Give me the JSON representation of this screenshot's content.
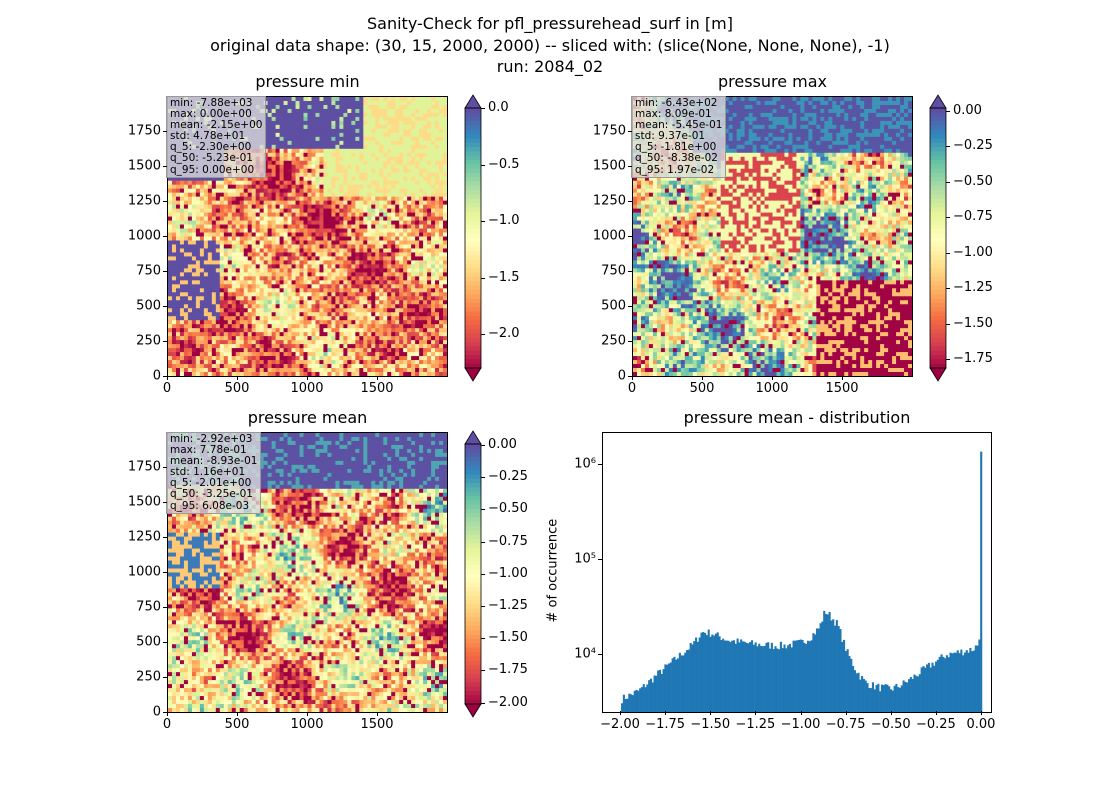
{
  "suptitle": {
    "line1": "Sanity-Check for pfl_pressurehead_surf in [m]",
    "line2": "original data shape: (30, 15, 2000, 2000) -- sliced with: (slice(None, None, None), -1)",
    "line3": "run: 2084_02"
  },
  "colors": {
    "spectral": [
      "#9e0142",
      "#d53e4f",
      "#f46d43",
      "#fdae61",
      "#fee08b",
      "#ffffbf",
      "#e6f598",
      "#abdda4",
      "#66c2a5",
      "#3288bd",
      "#5e4fa2"
    ],
    "hist_bar": "#1f77b4"
  },
  "chart_data": [
    {
      "type": "heatmap",
      "title": "pressure min",
      "x_ticks": [
        "0",
        "500",
        "1000",
        "1500"
      ],
      "y_ticks": [
        "0",
        "250",
        "500",
        "750",
        "1000",
        "1250",
        "1500",
        "1750"
      ],
      "x_range": [
        0,
        2000
      ],
      "y_range": [
        0,
        2000
      ],
      "colorbar": {
        "ticks": [
          "0.0",
          "−0.5",
          "−1.0",
          "−1.5",
          "−2.0"
        ],
        "tick_values": [
          0.0,
          -0.5,
          -1.0,
          -1.5,
          -2.0
        ],
        "range": [
          -2.3,
          0.0
        ],
        "extend": "both"
      },
      "stats": [
        "min: -7.88e+03",
        "max: 0.00e+00",
        "mean: -2.15e+00",
        "std: 4.78e+01",
        "q_5: -2.30e+00",
        "q_50: -5.23e-01",
        "q_95: 0.00e+00"
      ],
      "dominant_pattern": "top region high (purple), bottom mixed red/orange/yellow"
    },
    {
      "type": "heatmap",
      "title": "pressure max",
      "x_ticks": [
        "0",
        "500",
        "1000",
        "1500"
      ],
      "y_ticks": [
        "0",
        "250",
        "500",
        "750",
        "1000",
        "1250",
        "1500",
        "1750"
      ],
      "x_range": [
        0,
        2000
      ],
      "y_range": [
        0,
        2000
      ],
      "colorbar": {
        "ticks": [
          "0.00",
          "−0.25",
          "−0.50",
          "−0.75",
          "−1.00",
          "−1.25",
          "−1.50",
          "−1.75"
        ],
        "tick_values": [
          0.0,
          -0.25,
          -0.5,
          -0.75,
          -1.0,
          -1.25,
          -1.5,
          -1.75
        ],
        "range": [
          -1.81,
          0.0197
        ],
        "extend": "both"
      },
      "stats": [
        "min: -6.43e+02",
        "max: 8.09e-01",
        "mean: -5.45e-01",
        "std: 9.37e-01",
        "q_5: -1.81e+00",
        "q_50: -8.38e-02",
        "q_95: 1.97e-02"
      ]
    },
    {
      "type": "heatmap",
      "title": "pressure mean",
      "x_ticks": [
        "0",
        "500",
        "1000",
        "1500"
      ],
      "y_ticks": [
        "0",
        "250",
        "500",
        "750",
        "1000",
        "1250",
        "1500",
        "1750"
      ],
      "x_range": [
        0,
        2000
      ],
      "y_range": [
        0,
        2000
      ],
      "colorbar": {
        "ticks": [
          "0.00",
          "−0.25",
          "−0.50",
          "−0.75",
          "−1.00",
          "−1.25",
          "−1.50",
          "−1.75",
          "−2.00"
        ],
        "tick_values": [
          0.0,
          -0.25,
          -0.5,
          -0.75,
          -1.0,
          -1.25,
          -1.5,
          -1.75,
          -2.0
        ],
        "range": [
          -2.01,
          0.00608
        ],
        "extend": "both"
      },
      "stats": [
        "min: -2.92e+03",
        "max: 7.78e-01",
        "mean: -8.93e-01",
        "std: 1.16e+01",
        "q_5: -2.01e+00",
        "q_50: -3.25e-01",
        "q_95: 6.08e-03"
      ]
    },
    {
      "type": "bar",
      "title": "pressure mean - distribution",
      "ylabel": "# of occurrence",
      "y_scale": "log",
      "x_ticks": [
        "−2.00",
        "−1.75",
        "−1.50",
        "−1.25",
        "−1.00",
        "−0.75",
        "−0.50",
        "−0.25",
        "0.00"
      ],
      "x_tick_values": [
        -2.0,
        -1.75,
        -1.5,
        -1.25,
        -1.0,
        -0.75,
        -0.5,
        -0.25,
        0.0
      ],
      "y_ticks": [
        "10⁴",
        "10⁵",
        "10⁶"
      ],
      "y_tick_values": [
        10000,
        100000,
        1000000
      ],
      "xlim": [
        -2.1,
        0.05
      ],
      "ylim": [
        2500,
        2200000
      ],
      "bins": {
        "start": -2.0,
        "end": 0.0,
        "count": 200
      },
      "profile_x": [
        -2.0,
        -1.9,
        -1.8,
        -1.7,
        -1.6,
        -1.55,
        -1.5,
        -1.4,
        -1.3,
        -1.2,
        -1.1,
        -1.0,
        -0.95,
        -0.9,
        -0.87,
        -0.85,
        -0.8,
        -0.75,
        -0.7,
        -0.65,
        -0.6,
        -0.55,
        -0.5,
        -0.45,
        -0.4,
        -0.3,
        -0.2,
        -0.1,
        -0.05,
        -0.02,
        -0.01,
        -0.005,
        0.0
      ],
      "profile_y": [
        3400,
        4200,
        6200,
        9000,
        13000,
        17500,
        17000,
        14200,
        13300,
        12700,
        12500,
        13500,
        15500,
        19500,
        29000,
        27000,
        21000,
        11000,
        7000,
        5200,
        4700,
        4500,
        4400,
        4800,
        5500,
        7500,
        10000,
        11000,
        11500,
        13000,
        19500,
        31000,
        1400000
      ]
    }
  ]
}
